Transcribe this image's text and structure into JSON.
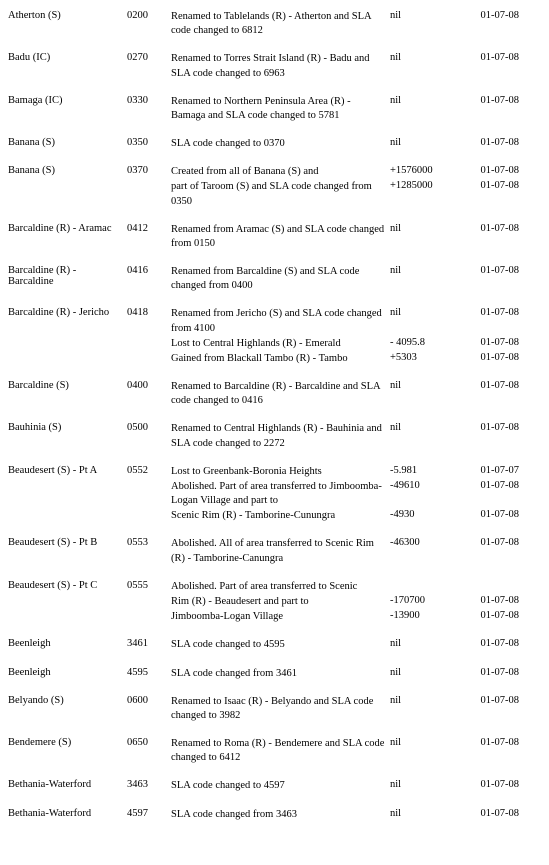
{
  "rows": [
    {
      "group": true,
      "lines": [
        {
          "name": "Atherton (S)",
          "code": "0200",
          "desc": "Renamed to Tablelands (R) - Atherton and SLA code changed to 6812",
          "val": "nil",
          "date": "01-07-08"
        }
      ]
    },
    {
      "group": true,
      "lines": [
        {
          "name": "Badu (IC)",
          "code": "0270",
          "desc": "Renamed to Torres Strait Island (R) - Badu and SLA code changed to 6963",
          "val": "nil",
          "date": "01-07-08"
        }
      ]
    },
    {
      "group": true,
      "lines": [
        {
          "name": "Bamaga (IC)",
          "code": "0330",
          "desc": "Renamed to Northern Peninsula Area (R) - Bamaga and SLA code changed to 5781",
          "val": "nil",
          "date": "01-07-08"
        }
      ]
    },
    {
      "group": true,
      "lines": [
        {
          "name": "Banana (S)",
          "code": "0350",
          "desc": "SLA code changed to 0370",
          "val": "nil",
          "date": "01-07-08"
        }
      ]
    },
    {
      "group": true,
      "lines": [
        {
          "name": "Banana (S)",
          "code": "0370",
          "desc": "Created from all of Banana (S) and",
          "val": "+1576000",
          "date": "01-07-08"
        },
        {
          "name": "",
          "code": "",
          "desc": "part of Taroom (S) and SLA code changed from 0350",
          "val": "+1285000",
          "date": "01-07-08"
        }
      ]
    },
    {
      "group": true,
      "lines": [
        {
          "name": "Barcaldine (R) - Aramac",
          "code": "0412",
          "desc": "Renamed from Aramac (S) and SLA code changed from 0150",
          "val": "nil",
          "date": "01-07-08"
        }
      ]
    },
    {
      "group": true,
      "lines": [
        {
          "name": "Barcaldine (R) - Barcaldine",
          "code": "0416",
          "desc": "Renamed from Barcaldine (S) and SLA code changed from 0400",
          "val": "nil",
          "date": "01-07-08"
        }
      ]
    },
    {
      "group": true,
      "lines": [
        {
          "name": "Barcaldine (R) - Jericho",
          "code": "0418",
          "desc": "Renamed from Jericho (S) and SLA code changed from 4100",
          "val": "nil",
          "date": "01-07-08"
        },
        {
          "name": "",
          "code": "",
          "desc": "Lost to Central Highlands (R) - Emerald",
          "val": "- 4095.8",
          "date": "01-07-08"
        },
        {
          "name": "",
          "code": "",
          "desc": "Gained from Blackall Tambo (R) - Tambo",
          "val": "+5303",
          "date": "01-07-08"
        }
      ]
    },
    {
      "group": true,
      "lines": [
        {
          "name": "Barcaldine (S)",
          "code": "0400",
          "desc": "Renamed to Barcaldine (R) - Barcaldine and SLA code changed to 0416",
          "val": "nil",
          "date": "01-07-08"
        }
      ]
    },
    {
      "group": true,
      "lines": [
        {
          "name": "Bauhinia (S)",
          "code": "0500",
          "desc": "Renamed to Central Highlands (R) - Bauhinia and SLA code changed to 2272",
          "val": "nil",
          "date": "01-07-08"
        }
      ]
    },
    {
      "group": true,
      "lines": [
        {
          "name": "Beaudesert (S) - Pt A",
          "code": "0552",
          "desc": "Lost to Greenbank-Boronia Heights",
          "val": "-5.981",
          "date": "01-07-07"
        },
        {
          "name": "",
          "code": "",
          "desc": "Abolished.  Part of area transferred to Jimboomba-Logan Village and part to",
          "val": "-49610",
          "date": "01-07-08"
        },
        {
          "name": "",
          "code": "",
          "desc": "Scenic Rim (R) - Tamborine-Cunungra",
          "val": "-4930",
          "date": "01-07-08"
        }
      ]
    },
    {
      "group": true,
      "lines": [
        {
          "name": "Beaudesert (S) - Pt B",
          "code": "0553",
          "desc": "Abolished.  All of area transferred to Scenic Rim (R) - Tamborine-Canungra",
          "val": "-46300",
          "date": "01-07-08"
        }
      ]
    },
    {
      "group": true,
      "lines": [
        {
          "name": "Beaudesert (S) - Pt C",
          "code": "0555",
          "desc": "Abolished.  Part of area transferred to Scenic",
          "val": "",
          "date": ""
        },
        {
          "name": "",
          "code": "",
          "desc": "Rim (R) - Beaudesert and part to",
          "val": "-170700",
          "date": "01-07-08"
        },
        {
          "name": "",
          "code": "",
          "desc": "Jimboomba-Logan Village",
          "val": "-13900",
          "date": "01-07-08"
        }
      ]
    },
    {
      "group": true,
      "lines": [
        {
          "name": "Beenleigh",
          "code": "3461",
          "desc": "SLA code changed to 4595",
          "val": "nil",
          "date": "01-07-08"
        }
      ]
    },
    {
      "group": true,
      "lines": [
        {
          "name": "Beenleigh",
          "code": "4595",
          "desc": "SLA code changed from 3461",
          "val": "nil",
          "date": "01-07-08"
        }
      ]
    },
    {
      "group": true,
      "lines": [
        {
          "name": "Belyando (S)",
          "code": "0600",
          "desc": "Renamed to Isaac (R) - Belyando and SLA code changed to 3982",
          "val": "nil",
          "date": "01-07-08"
        }
      ]
    },
    {
      "group": true,
      "lines": [
        {
          "name": "Bendemere (S)",
          "code": "0650",
          "desc": "Renamed to Roma (R) - Bendemere and SLA code changed to 6412",
          "val": "nil",
          "date": "01-07-08"
        }
      ]
    },
    {
      "group": true,
      "lines": [
        {
          "name": "Bethania-Waterford",
          "code": "3463",
          "desc": "SLA code changed to 4597",
          "val": "nil",
          "date": "01-07-08"
        }
      ]
    },
    {
      "group": true,
      "lines": [
        {
          "name": "Bethania-Waterford",
          "code": "4597",
          "desc": "SLA code changed from 3463",
          "val": "nil",
          "date": "01-07-08"
        }
      ]
    }
  ]
}
